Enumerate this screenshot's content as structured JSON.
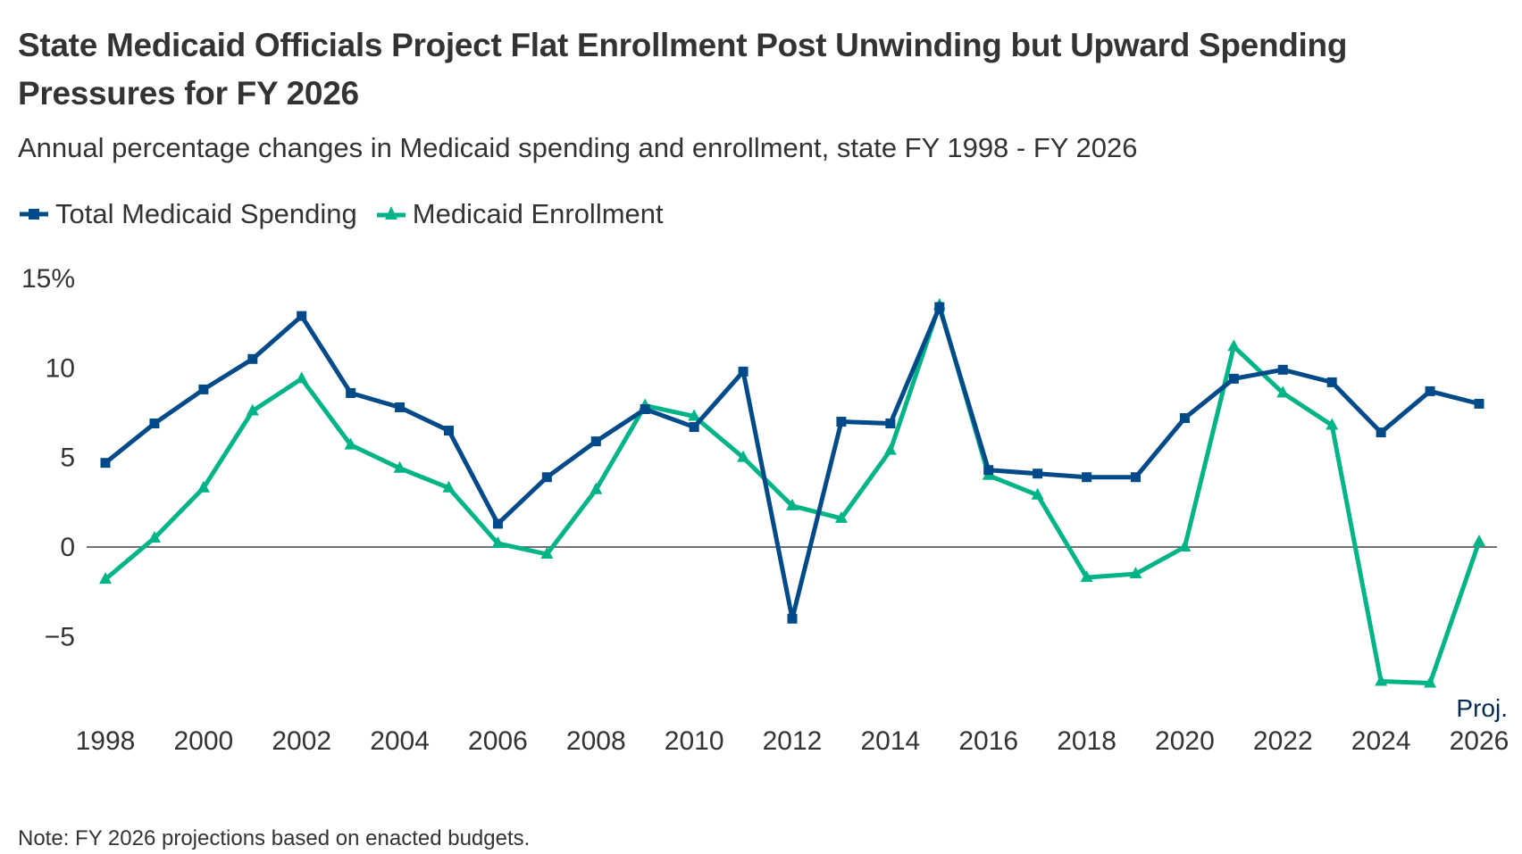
{
  "title": "State Medicaid Officials Project Flat Enrollment Post Unwinding but Upward Spending Pressures for FY 2026",
  "subtitle": "Annual percentage changes in Medicaid spending and enrollment, state FY 1998 - FY 2026",
  "note": "Note:  FY 2026 projections based on enacted budgets.",
  "colors": {
    "spending": "#004a89",
    "enrollment": "#00b487",
    "zero_line": "#444444",
    "proj_label": "#002a54"
  },
  "legend": [
    {
      "label": "Total Medicaid Spending",
      "marker": "square",
      "color": "#004a89"
    },
    {
      "label": "Medicaid Enrollment",
      "marker": "triangle",
      "color": "#00b487"
    }
  ],
  "chart_data": {
    "type": "line",
    "title": "State Medicaid Officials Project Flat Enrollment Post Unwinding but Upward Spending Pressures for FY 2026",
    "subtitle": "Annual percentage changes in Medicaid spending and enrollment, state FY 1998 - FY 2026",
    "xlabel": "",
    "ylabel": "",
    "x": [
      1998,
      1999,
      2000,
      2001,
      2002,
      2003,
      2004,
      2005,
      2006,
      2007,
      2008,
      2009,
      2010,
      2011,
      2012,
      2013,
      2014,
      2015,
      2016,
      2017,
      2018,
      2019,
      2020,
      2021,
      2022,
      2023,
      2024,
      2025,
      2026
    ],
    "x_tick_labels": [
      "1998",
      "2000",
      "2002",
      "2004",
      "2006",
      "2008",
      "2010",
      "2012",
      "2014",
      "2016",
      "2018",
      "2020",
      "2022",
      "2024",
      "2026"
    ],
    "x_tick_values": [
      1998,
      2000,
      2002,
      2004,
      2006,
      2008,
      2010,
      2012,
      2014,
      2016,
      2018,
      2020,
      2022,
      2024,
      2026
    ],
    "y_tick_labels": [
      "15%",
      "10",
      "5",
      "0",
      "−5"
    ],
    "y_tick_values": [
      15,
      10,
      5,
      0,
      -5
    ],
    "ylim": [
      -8,
      15
    ],
    "xlim": [
      1998,
      2026
    ],
    "grid": false,
    "zero_line": true,
    "legend_position": "top-left",
    "annotations": [
      {
        "text": "Proj.",
        "x": 2026,
        "position": "above x tick label"
      }
    ],
    "series": [
      {
        "name": "Total Medicaid Spending",
        "marker": "square",
        "values": [
          4.7,
          6.9,
          8.8,
          10.5,
          12.9,
          8.6,
          7.8,
          6.5,
          1.3,
          3.9,
          5.9,
          7.7,
          6.7,
          9.8,
          -4.0,
          7.0,
          6.9,
          13.4,
          4.3,
          4.1,
          3.9,
          3.9,
          7.2,
          9.4,
          9.9,
          9.2,
          6.4,
          8.7,
          8.0
        ]
      },
      {
        "name": "Medicaid Enrollment",
        "marker": "triangle",
        "values": [
          -1.8,
          0.5,
          3.3,
          7.6,
          9.4,
          5.7,
          4.4,
          3.3,
          0.2,
          -0.4,
          3.2,
          7.9,
          7.3,
          5.0,
          2.3,
          1.6,
          5.4,
          13.5,
          4.0,
          2.9,
          -1.7,
          -1.5,
          0.0,
          11.2,
          8.6,
          6.8,
          -7.5,
          -7.6,
          0.3
        ]
      }
    ]
  }
}
